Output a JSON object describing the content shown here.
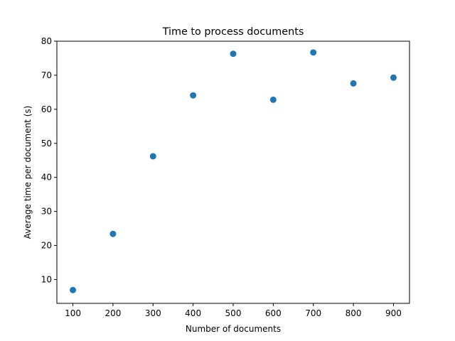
{
  "chart_data": {
    "type": "scatter",
    "title": "Time to process documents",
    "xlabel": "Number of documents",
    "ylabel": "Average time per document (s)",
    "xlim": [
      60,
      940
    ],
    "ylim": [
      3,
      80
    ],
    "x_ticks": [
      100,
      200,
      300,
      400,
      500,
      600,
      700,
      800,
      900
    ],
    "y_ticks": [
      10,
      20,
      30,
      40,
      50,
      60,
      70,
      80
    ],
    "x_tick_labels": [
      "100",
      "200",
      "300",
      "400",
      "500",
      "600",
      "700",
      "800",
      "900"
    ],
    "y_tick_labels": [
      "10",
      "20",
      "30",
      "40",
      "50",
      "60",
      "70",
      "80"
    ],
    "x": [
      100,
      200,
      300,
      400,
      500,
      600,
      700,
      800,
      900
    ],
    "y": [
      6.9,
      23.4,
      46.2,
      64.1,
      76.3,
      62.8,
      76.7,
      67.6,
      69.3
    ],
    "grid": false,
    "marker_color": "#1f77b4"
  }
}
